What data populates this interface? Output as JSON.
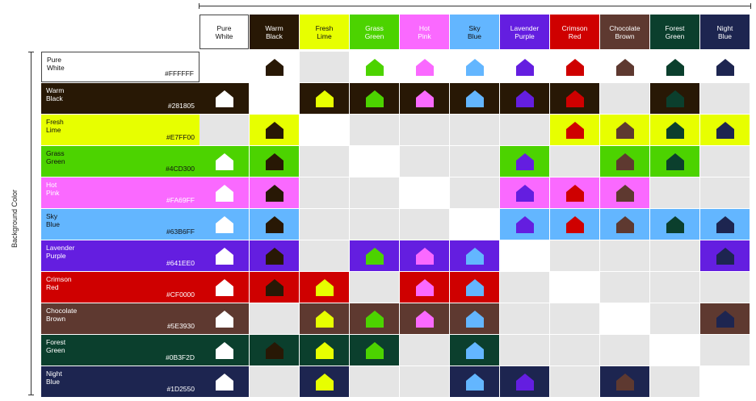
{
  "axis_label": "Background Color",
  "columns": [
    {
      "label": "Pure\nWhite",
      "hex": "#FFFFFF",
      "text": "#111111"
    },
    {
      "label": "Warm\nBlack",
      "hex": "#281805",
      "text": "#ffffff"
    },
    {
      "label": "Fresh\nLime",
      "hex": "#E7FF00",
      "text": "#111111"
    },
    {
      "label": "Grass\nGreen",
      "hex": "#4CD300",
      "text": "#ffffff"
    },
    {
      "label": "Hot\nPink",
      "hex": "#FA69FF",
      "text": "#ffffff"
    },
    {
      "label": "Sky\nBlue",
      "hex": "#63B6FF",
      "text": "#111111"
    },
    {
      "label": "Lavender\nPurple",
      "hex": "#641EE0",
      "text": "#ffffff"
    },
    {
      "label": "Crimson\nRed",
      "hex": "#CF0000",
      "text": "#ffffff"
    },
    {
      "label": "Chocolate\nBrown",
      "hex": "#5E3930",
      "text": "#ffffff"
    },
    {
      "label": "Forest\nGreen",
      "hex": "#0B3F2D",
      "text": "#ffffff"
    },
    {
      "label": "Night\nBlue",
      "hex": "#1D2550",
      "text": "#ffffff"
    }
  ],
  "rows": [
    {
      "name": "Pure\nWhite",
      "hex": "#FFFFFF",
      "text": "#111111"
    },
    {
      "name": "Warm\nBlack",
      "hex": "#281805",
      "text": "#ffffff"
    },
    {
      "name": "Fresh\nLime",
      "hex": "#E7FF00",
      "text": "#111111"
    },
    {
      "name": "Grass\nGreen",
      "hex": "#4CD300",
      "text": "#111111"
    },
    {
      "name": "Hot\nPink",
      "hex": "#FA69FF",
      "text": "#ffffff"
    },
    {
      "name": "Sky\nBlue",
      "hex": "#63B6FF",
      "text": "#111111"
    },
    {
      "name": "Lavender\nPurple",
      "hex": "#641EE0",
      "text": "#ffffff"
    },
    {
      "name": "Crimson\nRed",
      "hex": "#CF0000",
      "text": "#ffffff"
    },
    {
      "name": "Chocolate\nBrown",
      "hex": "#5E3930",
      "text": "#ffffff"
    },
    {
      "name": "Forest\nGreen",
      "hex": "#0B3F2D",
      "text": "#ffffff"
    },
    {
      "name": "Night\nBlue",
      "hex": "#1D2550",
      "text": "#ffffff"
    }
  ],
  "compatibility": [
    [
      0,
      1,
      0,
      1,
      1,
      1,
      1,
      1,
      1,
      1,
      1
    ],
    [
      1,
      0,
      1,
      1,
      1,
      1,
      1,
      1,
      0,
      1,
      0
    ],
    [
      0,
      1,
      0,
      0,
      0,
      0,
      0,
      1,
      1,
      1,
      1
    ],
    [
      1,
      1,
      0,
      0,
      0,
      0,
      1,
      0,
      1,
      1,
      0
    ],
    [
      1,
      1,
      0,
      0,
      0,
      0,
      1,
      1,
      1,
      0,
      0
    ],
    [
      1,
      1,
      0,
      0,
      0,
      0,
      1,
      1,
      1,
      1,
      1
    ],
    [
      1,
      1,
      0,
      1,
      1,
      1,
      0,
      0,
      0,
      0,
      1
    ],
    [
      1,
      1,
      1,
      0,
      1,
      1,
      0,
      0,
      0,
      0,
      0
    ],
    [
      1,
      0,
      1,
      1,
      1,
      1,
      0,
      0,
      0,
      0,
      1
    ],
    [
      1,
      1,
      1,
      1,
      0,
      1,
      0,
      0,
      0,
      0,
      0
    ],
    [
      1,
      0,
      1,
      0,
      0,
      1,
      1,
      0,
      1,
      0,
      0
    ]
  ],
  "incompatible_color": "#E5E5E5",
  "self_color": "#FFFFFF"
}
